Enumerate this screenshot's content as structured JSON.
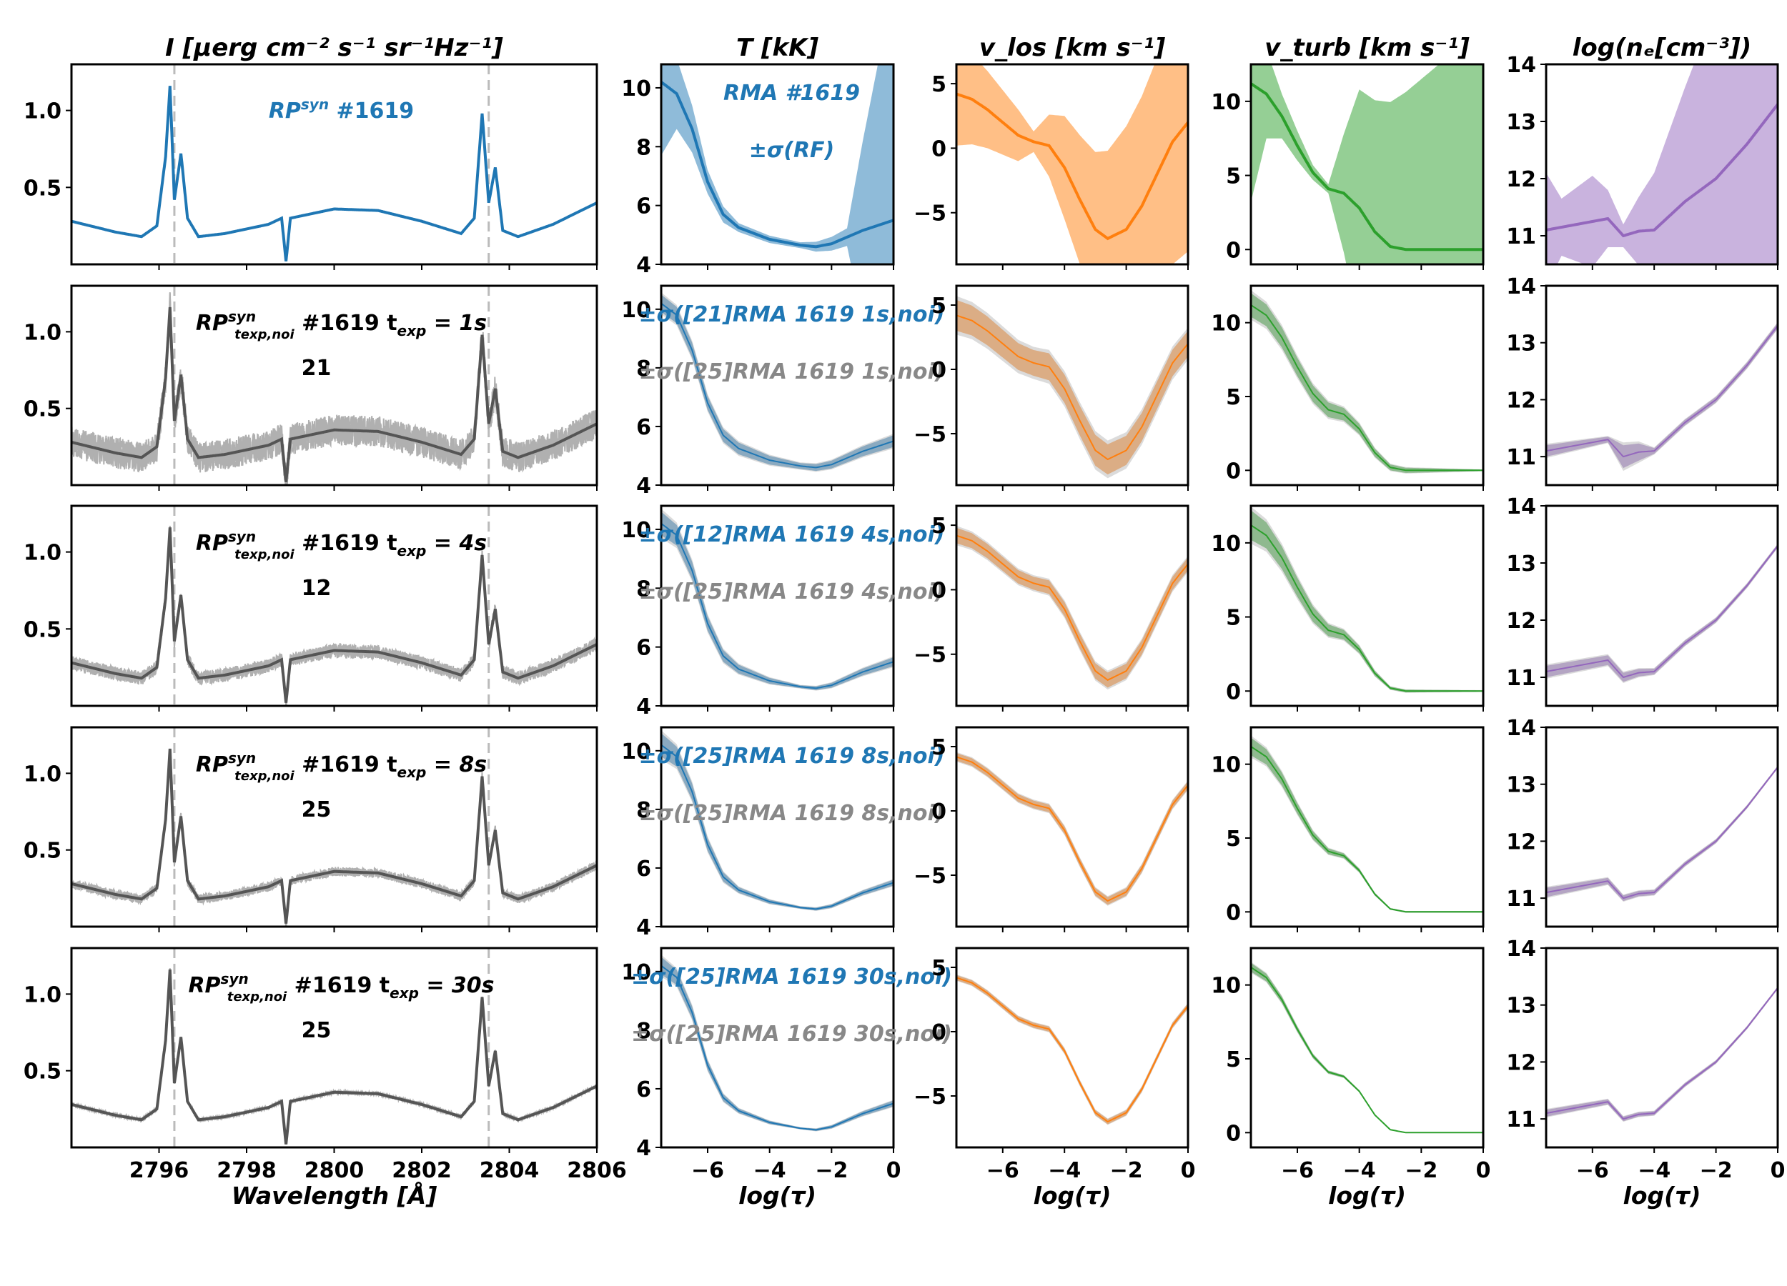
{
  "chart_data": {
    "type": "line",
    "columns": [
      {
        "title": "I [μerg cm⁻² s⁻¹ sr⁻¹Hz⁻¹]",
        "xlabel": "Wavelength [Å]",
        "xlim": [
          2794,
          2806
        ],
        "ylim": [
          0.0,
          1.3
        ],
        "xticks": [
          2796,
          2798,
          2800,
          2802,
          2804,
          2806
        ],
        "yticks": [
          0.5,
          1.0
        ],
        "xticklabels": [
          "2796",
          "2798",
          "2800",
          "2802",
          "2804",
          "2806"
        ],
        "yticklabels": [
          "0.5",
          "1.0"
        ],
        "reference_lines_x": [
          2796.35,
          2803.53
        ],
        "profile_points": [
          [
            2794.0,
            0.28
          ],
          [
            2795.0,
            0.21
          ],
          [
            2795.6,
            0.18
          ],
          [
            2795.95,
            0.25
          ],
          [
            2796.15,
            0.7
          ],
          [
            2796.25,
            1.16
          ],
          [
            2796.35,
            0.42
          ],
          [
            2796.5,
            0.72
          ],
          [
            2796.65,
            0.3
          ],
          [
            2796.9,
            0.18
          ],
          [
            2797.5,
            0.2
          ],
          [
            2798.5,
            0.26
          ],
          [
            2798.8,
            0.3
          ],
          [
            2798.9,
            0.02
          ],
          [
            2799.0,
            0.3
          ],
          [
            2800.0,
            0.36
          ],
          [
            2801.0,
            0.35
          ],
          [
            2802.0,
            0.28
          ],
          [
            2802.9,
            0.2
          ],
          [
            2803.2,
            0.3
          ],
          [
            2803.38,
            0.98
          ],
          [
            2803.53,
            0.4
          ],
          [
            2803.68,
            0.63
          ],
          [
            2803.85,
            0.22
          ],
          [
            2804.2,
            0.18
          ],
          [
            2805.0,
            0.26
          ],
          [
            2806.0,
            0.4
          ]
        ]
      },
      {
        "title": "T [kK]",
        "xlabel": "log(τ)",
        "xlim": [
          -7.5,
          0
        ],
        "ylim": [
          4,
          10.8
        ],
        "xticks": [
          -6,
          -4,
          -2,
          0
        ],
        "yticks": [
          4,
          6,
          8,
          10
        ],
        "xticklabels": [
          "−6",
          "−4",
          "−2",
          "0"
        ],
        "yticklabels": [
          "4",
          "6",
          "8",
          "10"
        ],
        "color": "#1f77b4",
        "profile": [
          [
            -7.5,
            10.2
          ],
          [
            -7,
            9.8
          ],
          [
            -6.5,
            8.6
          ],
          [
            -6,
            6.8
          ],
          [
            -5.5,
            5.7
          ],
          [
            -5,
            5.25
          ],
          [
            -4,
            4.85
          ],
          [
            -3,
            4.65
          ],
          [
            -2.5,
            4.6
          ],
          [
            -2,
            4.7
          ],
          [
            -1,
            5.15
          ],
          [
            0,
            5.5
          ]
        ]
      },
      {
        "title": "v_los [km s⁻¹]",
        "xlabel": "log(τ)",
        "xlim": [
          -7.5,
          0
        ],
        "ylim": [
          -9,
          6.5
        ],
        "xticks": [
          -6,
          -4,
          -2,
          0
        ],
        "yticks": [
          -5,
          0,
          5
        ],
        "xticklabels": [
          "−6",
          "−4",
          "−2",
          "0"
        ],
        "yticklabels": [
          "−5",
          "0",
          "5"
        ],
        "color": "#ff7f0e",
        "profile": [
          [
            -7.5,
            4.2
          ],
          [
            -7,
            3.8
          ],
          [
            -6.5,
            3
          ],
          [
            -6,
            2
          ],
          [
            -5.5,
            1
          ],
          [
            -5,
            0.5
          ],
          [
            -4.5,
            0.2
          ],
          [
            -4,
            -1.5
          ],
          [
            -3.5,
            -4
          ],
          [
            -3,
            -6.3
          ],
          [
            -2.6,
            -7
          ],
          [
            -2,
            -6.3
          ],
          [
            -1.5,
            -4.5
          ],
          [
            -1,
            -2
          ],
          [
            -0.5,
            0.5
          ],
          [
            0,
            2
          ]
        ]
      },
      {
        "title": "v_turb [km s⁻¹]",
        "xlabel": "log(τ)",
        "xlim": [
          -7.5,
          0
        ],
        "ylim": [
          -1,
          12.5
        ],
        "xticks": [
          -6,
          -4,
          -2,
          0
        ],
        "yticks": [
          0,
          5,
          10
        ],
        "xticklabels": [
          "−6",
          "−4",
          "−2",
          "0"
        ],
        "yticklabels": [
          "0",
          "5",
          "10"
        ],
        "color": "#2ca02c",
        "profile": [
          [
            -7.5,
            11.2
          ],
          [
            -7,
            10.5
          ],
          [
            -6.5,
            9
          ],
          [
            -6,
            7
          ],
          [
            -5.5,
            5.2
          ],
          [
            -5,
            4.1
          ],
          [
            -4.5,
            3.8
          ],
          [
            -4,
            2.8
          ],
          [
            -3.5,
            1.2
          ],
          [
            -3,
            0.2
          ],
          [
            -2.5,
            0
          ],
          [
            0,
            0
          ]
        ]
      },
      {
        "title": "log(nₑ[cm⁻³])",
        "xlabel": "log(τ)",
        "xlim": [
          -7.5,
          0
        ],
        "ylim": [
          10.5,
          14
        ],
        "xticks": [
          -6,
          -4,
          -2,
          0
        ],
        "yticks": [
          11,
          12,
          13,
          14
        ],
        "xticklabels": [
          "−6",
          "−4",
          "−2",
          "0"
        ],
        "yticklabels": [
          "11",
          "12",
          "13",
          "14"
        ],
        "color": "#9467bd",
        "profile": [
          [
            -7.5,
            11.1
          ],
          [
            -7,
            11.15
          ],
          [
            -6,
            11.25
          ],
          [
            -5.5,
            11.3
          ],
          [
            -5,
            11.0
          ],
          [
            -4.5,
            11.08
          ],
          [
            -4,
            11.1
          ],
          [
            -3,
            11.6
          ],
          [
            -2,
            12.0
          ],
          [
            -1,
            12.6
          ],
          [
            0,
            13.3
          ]
        ]
      }
    ],
    "rows": [
      {
        "label_main": "RP",
        "label_sup": "syn",
        "label_rest": " #1619",
        "count": "",
        "noise": 0,
        "mean_color": "#1f77b4",
        "band_widths": [
          [
            [
              -7.5,
              2.5
            ],
            [
              -7,
              1.2
            ],
            [
              -6,
              0.4
            ],
            [
              -5,
              0.15
            ],
            [
              -3,
              0.1
            ],
            [
              -1.5,
              0.3
            ],
            [
              -1,
              3
            ],
            [
              0,
              8
            ]
          ],
          [
            [
              -7.5,
              4
            ],
            [
              -6.5,
              3
            ],
            [
              -5.5,
              2
            ],
            [
              -5,
              0.8
            ],
            [
              -4,
              4
            ],
            [
              -3,
              6
            ],
            [
              -2,
              8
            ],
            [
              0,
              10
            ]
          ],
          [
            [
              -7.5,
              8
            ],
            [
              -7,
              3
            ],
            [
              -6.5,
              1.5
            ],
            [
              -5.5,
              0.5
            ],
            [
              -5,
              0.3
            ],
            [
              -4.5,
              4
            ],
            [
              -4,
              8
            ],
            [
              0,
              15
            ]
          ],
          [
            [
              -7.5,
              1
            ],
            [
              -7,
              0.5
            ],
            [
              -6,
              0.8
            ],
            [
              -5,
              0.2
            ],
            [
              -4,
              1
            ],
            [
              -3,
              2
            ],
            [
              -2,
              3
            ],
            [
              0,
              4
            ]
          ]
        ],
        "annotation_lines": [
          "RMA #1619",
          "±σ(RF)"
        ],
        "annotation_colors": [
          "#1f77b4",
          "#1f77b4"
        ]
      },
      {
        "label_main": "RP",
        "label_sup": "syn",
        "label_sub": "texp,noi",
        "label_rest": " #1619 t",
        "label_sub2": "exp",
        "label_tail": " = 1s",
        "count": "21",
        "noise": 0.1,
        "mean_color": "#555555",
        "band_widths": [
          [
            [
              -7.5,
              0.3
            ],
            [
              -5,
              0.2
            ],
            [
              -3,
              0.1
            ],
            [
              0,
              0.2
            ]
          ],
          [
            [
              -7.5,
              1.2
            ],
            [
              -5,
              1
            ],
            [
              -3,
              1.2
            ],
            [
              0,
              1
            ]
          ],
          [
            [
              -7.5,
              0.8
            ],
            [
              -5,
              0.5
            ],
            [
              -3,
              0.2
            ],
            [
              0,
              0.05
            ]
          ],
          [
            [
              -7.5,
              0.1
            ],
            [
              -5.5,
              0.05
            ],
            [
              -5,
              0.2
            ],
            [
              -4.5,
              0.15
            ],
            [
              -4,
              0.05
            ],
            [
              0,
              0.05
            ]
          ]
        ],
        "annotation_lines": [
          "±σ([21]RMA 1619 1s,noi)",
          "±σ([25]RMA 1619 1s,noi)"
        ],
        "annotation_colors": [
          "#1f77b4",
          "#888888"
        ]
      },
      {
        "label_main": "RP",
        "label_sup": "syn",
        "label_sub": "texp,noi",
        "label_rest": " #1619 t",
        "label_sub2": "exp",
        "label_tail": " = 4s",
        "count": "12",
        "noise": 0.045,
        "mean_color": "#555555",
        "band_widths": [
          [
            [
              -7.5,
              0.4
            ],
            [
              -5,
              0.15
            ],
            [
              -3,
              0.05
            ],
            [
              0,
              0.15
            ]
          ],
          [
            [
              -7.5,
              0.6
            ],
            [
              -5,
              0.5
            ],
            [
              -3,
              0.6
            ],
            [
              0,
              0.5
            ]
          ],
          [
            [
              -7.5,
              1
            ],
            [
              -5,
              0.4
            ],
            [
              -3,
              0.1
            ],
            [
              0,
              0.05
            ]
          ],
          [
            [
              -7.5,
              0.1
            ],
            [
              -5,
              0.08
            ],
            [
              -4,
              0.05
            ],
            [
              0,
              0.03
            ]
          ]
        ],
        "annotation_lines": [
          "±σ([12]RMA 1619 4s,noi)",
          "±σ([25]RMA 1619 4s,noi)"
        ],
        "annotation_colors": [
          "#1f77b4",
          "#888888"
        ]
      },
      {
        "label_main": "RP",
        "label_sup": "syn",
        "label_sub": "texp,noi",
        "label_rest": " #1619 t",
        "label_sub2": "exp",
        "label_tail": " = 8s",
        "count": "25",
        "noise": 0.03,
        "mean_color": "#555555",
        "band_widths": [
          [
            [
              -7.5,
              0.4
            ],
            [
              -5,
              0.1
            ],
            [
              -3,
              0.04
            ],
            [
              0,
              0.1
            ]
          ],
          [
            [
              -7.5,
              0.3
            ],
            [
              -5,
              0.3
            ],
            [
              -3,
              0.3
            ],
            [
              0,
              0.3
            ]
          ],
          [
            [
              -7.5,
              0.6
            ],
            [
              -5,
              0.2
            ],
            [
              -3,
              0.05
            ],
            [
              0,
              0.05
            ]
          ],
          [
            [
              -7.5,
              0.08
            ],
            [
              -5,
              0.05
            ],
            [
              0,
              0.02
            ]
          ]
        ],
        "annotation_lines": [
          "±σ([25]RMA 1619 8s,noi)",
          "±σ([25]RMA 1619 8s,noi)"
        ],
        "annotation_colors": [
          "#1f77b4",
          "#888888"
        ]
      },
      {
        "label_main": "RP",
        "label_sup": "syn",
        "label_sub": "texp,noi",
        "label_rest": " #1619 t",
        "label_sub2": "exp",
        "label_tail": " = 30s",
        "count": "25",
        "noise": 0.01,
        "mean_color": "#555555",
        "band_widths": [
          [
            [
              -7.5,
              0.3
            ],
            [
              -5,
              0.08
            ],
            [
              -3,
              0.03
            ],
            [
              0,
              0.1
            ]
          ],
          [
            [
              -7.5,
              0.2
            ],
            [
              -5,
              0.2
            ],
            [
              -3,
              0.2
            ],
            [
              0,
              0.2
            ]
          ],
          [
            [
              -7.5,
              0.3
            ],
            [
              -5,
              0.1
            ],
            [
              -3,
              0.03
            ],
            [
              0,
              0.03
            ]
          ],
          [
            [
              -7.5,
              0.06
            ],
            [
              -5,
              0.04
            ],
            [
              0,
              0.02
            ]
          ]
        ],
        "annotation_lines": [
          "±σ([25]RMA 1619 30s,noi)",
          "±σ([25]RMA 1619 30s,noi)"
        ],
        "annotation_colors": [
          "#1f77b4",
          "#888888"
        ]
      }
    ]
  }
}
